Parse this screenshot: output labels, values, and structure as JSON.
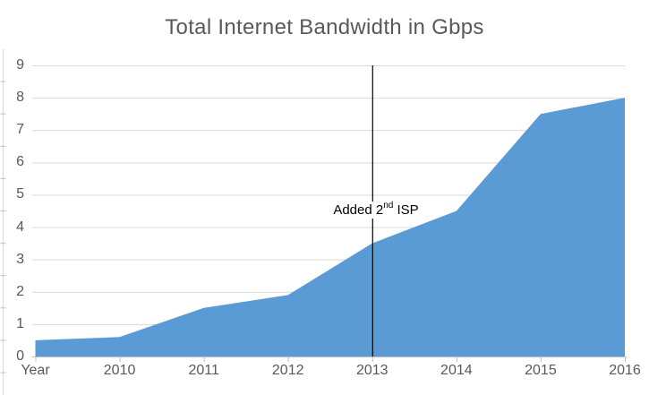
{
  "chart_data": {
    "type": "area",
    "title": "Total Internet Bandwidth in Gbps",
    "categories": [
      "Year",
      "2010",
      "2011",
      "2012",
      "2013",
      "2014",
      "2015",
      "2016"
    ],
    "values": [
      0.5,
      0.6,
      1.5,
      1.9,
      3.5,
      4.5,
      7.5,
      8.0
    ],
    "ylabel": "",
    "xlabel": "",
    "ylim": [
      0,
      9
    ],
    "yticks": [
      0,
      1,
      2,
      3,
      4,
      5,
      6,
      7,
      8,
      9
    ],
    "grid": true,
    "legend": "none",
    "annotation": {
      "text_prefix": "Added 2",
      "text_superscript": "nd",
      "text_suffix": " ISP",
      "at_category": "2013",
      "line_from_value": 9,
      "line_to_value": 0
    },
    "colors": {
      "area_fill": "#5B9BD5",
      "gridline": "#D9D9D9",
      "axis_line": "#BFBFBF",
      "tick": "#BFBFBF",
      "label_text": "#595959",
      "title_text": "#595959",
      "annotation_text": "#000000",
      "annotation_line": "#000000"
    }
  }
}
